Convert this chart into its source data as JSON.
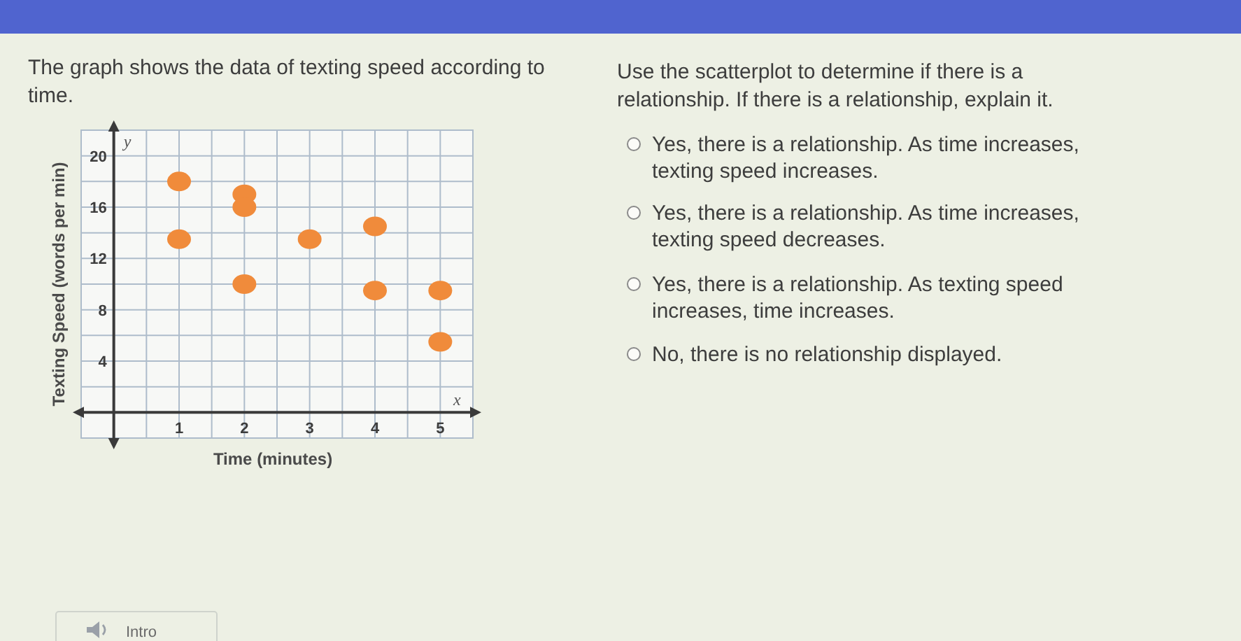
{
  "chart_data": {
    "type": "scatter",
    "title": "The graph shows the data of texting speed according to time.",
    "xlabel": "Time (minutes)",
    "ylabel": "Texting Speed (words per min)",
    "x": [
      1,
      1,
      2,
      2,
      2,
      3,
      4,
      4,
      5,
      5
    ],
    "values": [
      18,
      13.5,
      17,
      16,
      10,
      13.5,
      14.5,
      9.5,
      9.5,
      5.5
    ],
    "color": "#f08b3b",
    "marker": "circle",
    "grid": true,
    "xlim": [
      -0.5,
      5.5
    ],
    "xticks": [
      {
        "value": -0.5,
        "label": null
      },
      {
        "value": 0,
        "label": null
      },
      {
        "value": 0.5,
        "label": null
      },
      1,
      {
        "value": 1.5,
        "label": null
      },
      2,
      {
        "value": 2.5,
        "label": null
      },
      3,
      {
        "value": 3.5,
        "label": null
      },
      4,
      {
        "value": 4.5,
        "label": null
      },
      5,
      {
        "value": 5.5,
        "label": null
      }
    ],
    "ylim": [
      -2,
      22
    ],
    "yticks": [
      {
        "value": -2,
        "label": null
      },
      {
        "value": 0,
        "label": null
      },
      {
        "value": 2,
        "label": null
      },
      4,
      {
        "value": 6,
        "label": null
      },
      8,
      {
        "value": 10,
        "label": null
      },
      12,
      {
        "value": 14,
        "label": null
      },
      16,
      {
        "value": 18,
        "label": null
      },
      20,
      {
        "value": 22,
        "label": null
      }
    ],
    "annotations": [
      "Use the scatterplot to determine if there is a relationship. If there is a relationship, explain it.",
      "Yes, there is a relationship. As time increases, texting speed increases.",
      "Yes, there is a relationship. As time increases, texting speed decreases.",
      "Yes, there is a relationship. As texting speed increases, time increases.",
      "No, there is no relationship displayed.",
      "Intro",
      "y",
      "x"
    ]
  }
}
